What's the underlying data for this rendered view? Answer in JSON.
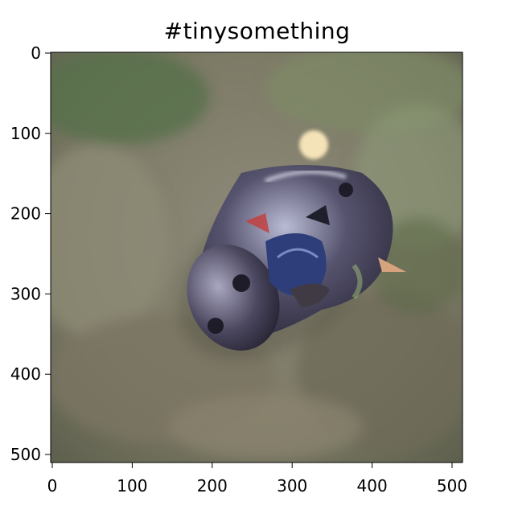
{
  "title": "#tinysomething",
  "image": {
    "subject": "beetle-bug-icon",
    "colors": {
      "background_green": "#6b7a5c",
      "background_brown": "#8a8270",
      "shell_dark": "#3c3a55",
      "shell_highlight": "#b5b7d0",
      "leg_blue": "#2d3e7a"
    }
  },
  "axes": {
    "xlim": [
      0,
      512
    ],
    "ylim": [
      0,
      512
    ],
    "y_inverted": true,
    "x_ticks": [
      "0",
      "100",
      "200",
      "300",
      "400",
      "500"
    ],
    "y_ticks": [
      "0",
      "100",
      "200",
      "300",
      "400",
      "500"
    ]
  }
}
